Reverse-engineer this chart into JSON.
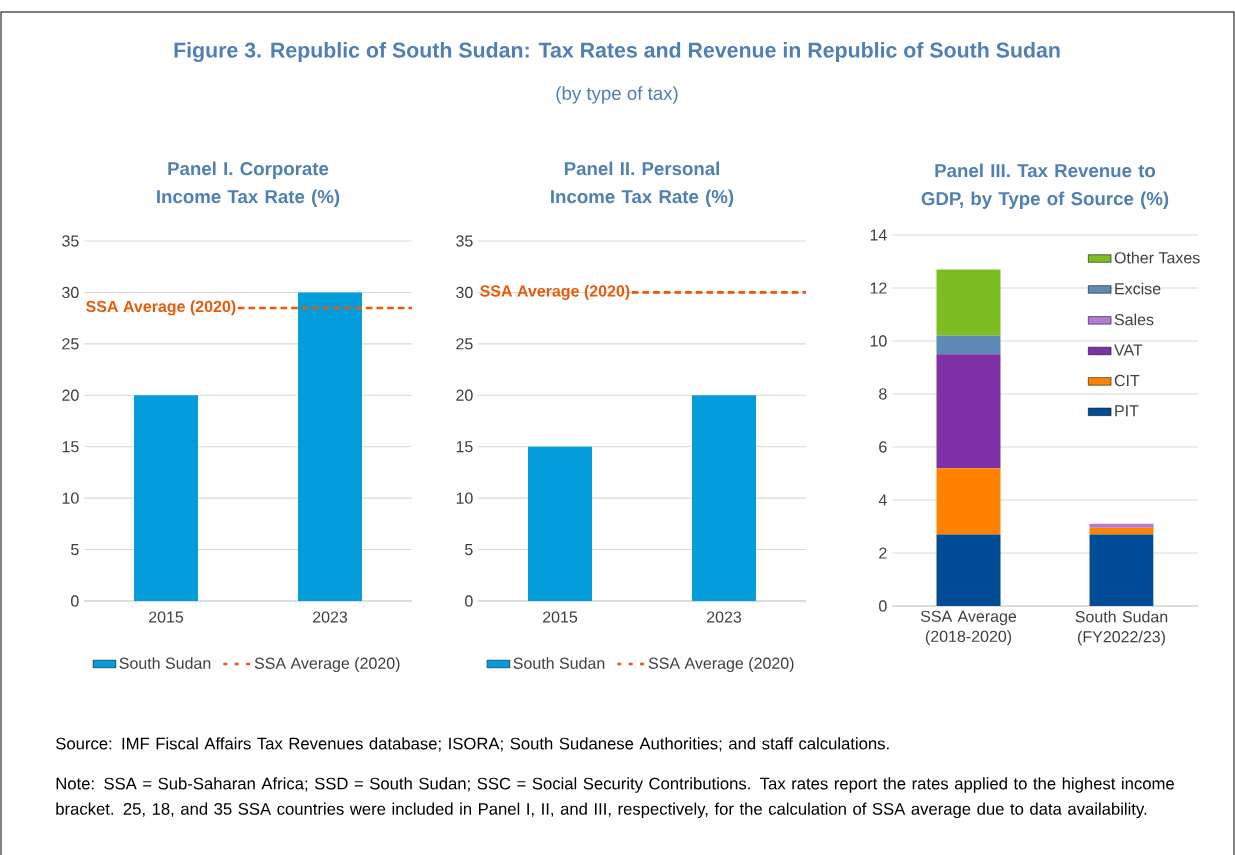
{
  "chart_data": [
    {
      "type": "other",
      "title": "Figure 3. Republic of South Sudan: Tax Rates and Revenue in Republic of South Sudan",
      "subtitle": "(by type of tax)",
      "annotations": [
        "Source: IMF Fiscal Affairs Tax Revenues database; ISORA; South Sudanese Authorities; and staff calculations.",
        "Note: SSA = Sub-Saharan Africa; SSD = South Sudan; SSC = Social Security Contributions. Tax rates report the rates applied to the highest income bracket. 25, 18, and 35 SSA countries were included in Panel I, II, and III, respectively, for the calculation of SSA average due to data availability."
      ]
    },
    {
      "type": "bar",
      "title": "Panel I. Corporate Income Tax Rate (%)",
      "categories": [
        "2015",
        "2023"
      ],
      "series": [
        {
          "name": "South Sudan",
          "color": "#039DDB",
          "values": [
            20,
            30
          ]
        }
      ],
      "ref_lines": [
        {
          "axis": "y",
          "value": 28.5,
          "label": "SSA Average (2020)",
          "color": "#E8590C",
          "line_style": "dashed"
        }
      ],
      "ylim": [
        0,
        35
      ],
      "yticks": [
        0,
        5,
        10,
        15,
        20,
        25,
        30,
        35
      ],
      "grid": "y",
      "legend": "bottom"
    },
    {
      "type": "bar",
      "title": "Panel II. Personal Income Tax Rate (%)",
      "categories": [
        "2015",
        "2023"
      ],
      "series": [
        {
          "name": "South Sudan",
          "color": "#039DDB",
          "values": [
            15,
            20
          ]
        }
      ],
      "ref_lines": [
        {
          "axis": "y",
          "value": 30,
          "label": "SSA Average (2020)",
          "color": "#E8590C",
          "line_style": "dashed"
        }
      ],
      "ylim": [
        0,
        35
      ],
      "yticks": [
        0,
        5,
        10,
        15,
        20,
        25,
        30,
        35
      ],
      "grid": "y",
      "legend": "bottom"
    },
    {
      "type": "bar",
      "title": "Panel III. Tax Revenue to GDP, by Type of Source (%)",
      "categories": [
        "SSA Average (2018-2020)",
        "South Sudan (FY2022/23)"
      ],
      "stacked": true,
      "series": [
        {
          "name": "PIT",
          "color": "#004C97",
          "values": [
            2.7,
            2.7
          ]
        },
        {
          "name": "CIT",
          "color": "#FF8200",
          "values": [
            2.5,
            0.25
          ]
        },
        {
          "name": "VAT",
          "color": "#7F30A4",
          "values": [
            4.3,
            0
          ]
        },
        {
          "name": "Sales",
          "color": "#B57AD6",
          "values": [
            0,
            0.15
          ]
        },
        {
          "name": "Excise",
          "color": "#5F8AB5",
          "values": [
            0.7,
            0
          ]
        },
        {
          "name": "Other Taxes",
          "color": "#7DBD22",
          "values": [
            2.5,
            0
          ]
        }
      ],
      "ylim": [
        0,
        14
      ],
      "yticks": [
        0,
        2,
        4,
        6,
        8,
        10,
        12,
        14
      ],
      "grid": "y",
      "legend": "top right"
    }
  ]
}
